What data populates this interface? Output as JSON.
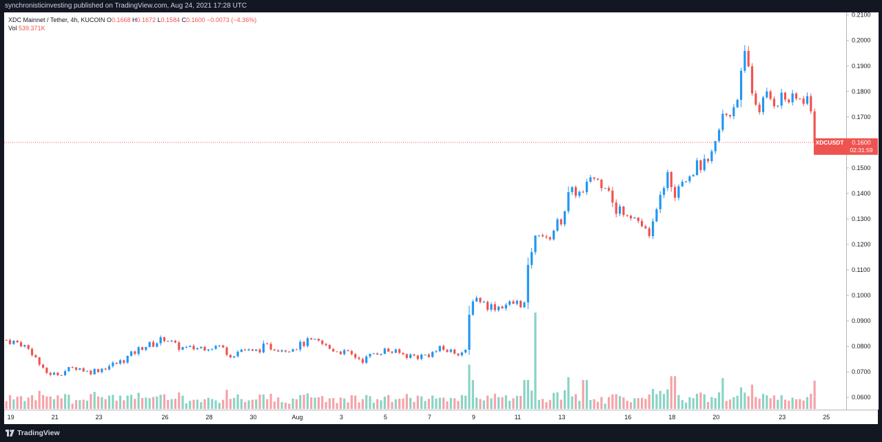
{
  "header": {
    "publish_line": "synchronisticinvesting published on TradingView.com, Aug 24, 2021 17:28 UTC"
  },
  "legend": {
    "title": "XDC Mainnet / Tether, 4h, KUCOIN",
    "o_label": "O",
    "o_value": "0.1668",
    "h_label": "H",
    "h_value": "0.1672",
    "l_label": "L",
    "l_value": "0.1584",
    "c_label": "C",
    "c_value": "0.1600",
    "change": "−0.0073 (−4.36%)",
    "vol_label": "Vol",
    "vol_value": "539.371K"
  },
  "price_tag": {
    "symbol": "XDCUSDT",
    "price": "0.1600",
    "countdown": "02:31:59"
  },
  "footer": {
    "brand": "TradingView"
  },
  "colors": {
    "up": "#2196f3",
    "down": "#ef5350",
    "vol_up": "#8ad3c4",
    "vol_down": "#f5a3a8",
    "background": "#131722"
  },
  "chart_data": {
    "type": "candlestick",
    "interval": "4h",
    "price_axis": {
      "ticks": [
        "0.2100",
        "0.2000",
        "0.1900",
        "0.1800",
        "0.1700",
        "0.1600",
        "0.1500",
        "0.1400",
        "0.1300",
        "0.1200",
        "0.1100",
        "0.1000",
        "0.0900",
        "0.0800",
        "0.0700",
        "0.0600"
      ],
      "range": [
        0.0552,
        0.211
      ]
    },
    "time_axis": {
      "ticks": [
        {
          "label": "19",
          "day": 19
        },
        {
          "label": "21",
          "day": 21
        },
        {
          "label": "23",
          "day": 23
        },
        {
          "label": "26",
          "day": 26
        },
        {
          "label": "28",
          "day": 28
        },
        {
          "label": "30",
          "day": 30
        },
        {
          "label": "Aug",
          "day": 32
        },
        {
          "label": "3",
          "day": 34
        },
        {
          "label": "5",
          "day": 36
        },
        {
          "label": "7",
          "day": 38
        },
        {
          "label": "9",
          "day": 40
        },
        {
          "label": "11",
          "day": 42
        },
        {
          "label": "13",
          "day": 44
        },
        {
          "label": "16",
          "day": 47
        },
        {
          "label": "18",
          "day": 49
        },
        {
          "label": "20",
          "day": 51
        },
        {
          "label": "23",
          "day": 54
        },
        {
          "label": "25",
          "day": 56
        }
      ],
      "range_days": [
        18.7,
        56.9
      ]
    },
    "last_price": 0.16,
    "keypoints": [
      [
        18.8,
        0.0825
      ],
      [
        19.5,
        0.081
      ],
      [
        20.0,
        0.0775
      ],
      [
        20.5,
        0.07
      ],
      [
        21.0,
        0.069
      ],
      [
        21.5,
        0.0705
      ],
      [
        22.0,
        0.072
      ],
      [
        22.5,
        0.07
      ],
      [
        23.0,
        0.071
      ],
      [
        24.0,
        0.074
      ],
      [
        25.0,
        0.08
      ],
      [
        25.5,
        0.081
      ],
      [
        26.0,
        0.0835
      ],
      [
        26.5,
        0.08
      ],
      [
        27.0,
        0.079
      ],
      [
        28.0,
        0.08
      ],
      [
        28.5,
        0.08
      ],
      [
        29.0,
        0.0765
      ],
      [
        29.5,
        0.079
      ],
      [
        30.0,
        0.0775
      ],
      [
        30.5,
        0.08
      ],
      [
        31.0,
        0.0795
      ],
      [
        31.5,
        0.079
      ],
      [
        32.0,
        0.08
      ],
      [
        32.5,
        0.082
      ],
      [
        33.0,
        0.0815
      ],
      [
        33.5,
        0.079
      ],
      [
        34.0,
        0.078
      ],
      [
        34.5,
        0.0765
      ],
      [
        35.0,
        0.0745
      ],
      [
        35.5,
        0.0775
      ],
      [
        36.0,
        0.0785
      ],
      [
        36.5,
        0.0775
      ],
      [
        37.0,
        0.0765
      ],
      [
        37.5,
        0.076
      ],
      [
        38.0,
        0.077
      ],
      [
        38.5,
        0.079
      ],
      [
        39.0,
        0.078
      ],
      [
        39.7,
        0.0775
      ],
      [
        39.85,
        0.099
      ],
      [
        40.2,
        0.099
      ],
      [
        40.6,
        0.096
      ],
      [
        41.0,
        0.0955
      ],
      [
        41.5,
        0.0965
      ],
      [
        42.0,
        0.097
      ],
      [
        42.35,
        0.0965
      ],
      [
        42.5,
        0.114
      ],
      [
        42.7,
        0.12
      ],
      [
        43.0,
        0.126
      ],
      [
        43.3,
        0.121
      ],
      [
        43.7,
        0.127
      ],
      [
        44.0,
        0.13
      ],
      [
        44.3,
        0.139
      ],
      [
        44.6,
        0.141
      ],
      [
        45.0,
        0.139
      ],
      [
        45.3,
        0.147
      ],
      [
        45.6,
        0.145
      ],
      [
        46.0,
        0.144
      ],
      [
        46.2,
        0.142
      ],
      [
        46.4,
        0.13
      ],
      [
        46.6,
        0.134
      ],
      [
        47.0,
        0.133
      ],
      [
        47.5,
        0.129
      ],
      [
        47.8,
        0.125
      ],
      [
        48.0,
        0.1215
      ],
      [
        48.3,
        0.136
      ],
      [
        48.6,
        0.138
      ],
      [
        48.8,
        0.15
      ],
      [
        49.1,
        0.14
      ],
      [
        49.4,
        0.146
      ],
      [
        49.8,
        0.148
      ],
      [
        50.2,
        0.151
      ],
      [
        50.7,
        0.151
      ],
      [
        51.0,
        0.16
      ],
      [
        51.3,
        0.17
      ],
      [
        51.7,
        0.172
      ],
      [
        52.0,
        0.18
      ],
      [
        52.3,
        0.193
      ],
      [
        52.5,
        0.188
      ],
      [
        52.7,
        0.176
      ],
      [
        53.0,
        0.174
      ],
      [
        53.3,
        0.178
      ],
      [
        53.7,
        0.176
      ],
      [
        54.0,
        0.178
      ],
      [
        54.4,
        0.176
      ],
      [
        54.8,
        0.177
      ],
      [
        55.1,
        0.178
      ],
      [
        55.35,
        0.17
      ],
      [
        55.5,
        0.16
      ]
    ],
    "volume_spikes": [
      {
        "day": 39.8,
        "rel": 0.46
      },
      {
        "day": 39.97,
        "rel": 0.3
      },
      {
        "day": 42.35,
        "rel": 0.3
      },
      {
        "day": 42.85,
        "rel": 1.0
      },
      {
        "day": 44.35,
        "rel": 0.33
      },
      {
        "day": 45.05,
        "rel": 0.3
      },
      {
        "day": 49.05,
        "rel": 0.34
      },
      {
        "day": 51.35,
        "rel": 0.32
      },
      {
        "day": 30.4,
        "rel": 0.15
      },
      {
        "day": 32.0,
        "rel": 0.1
      }
    ],
    "volume_max_label": "",
    "series": [
      {
        "name": "XDC Mainnet / Tether"
      }
    ]
  }
}
